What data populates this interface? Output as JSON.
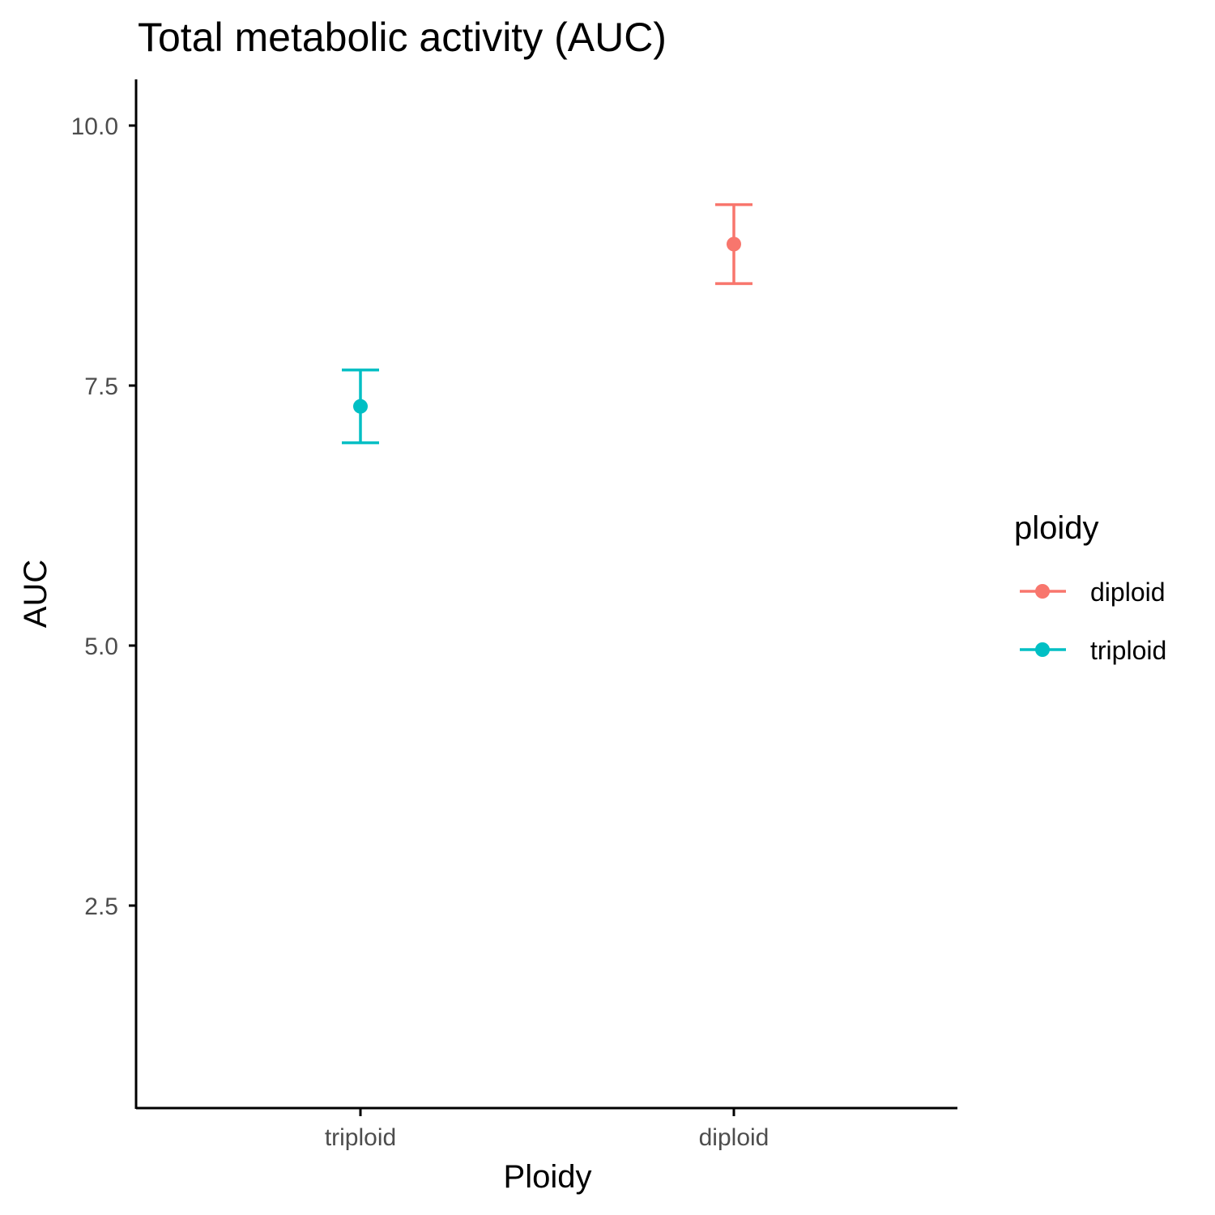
{
  "chart_data": {
    "type": "scatter",
    "title": "Total metabolic activity (AUC)",
    "xlabel": "Ploidy",
    "ylabel": "AUC",
    "categories": [
      "triploid",
      "diploid"
    ],
    "ylim": [
      0.8,
      10.45
    ],
    "yticks": [
      2.5,
      5.0,
      7.5,
      10.0
    ],
    "ytick_labels": [
      "2.5",
      "5.0",
      "7.5",
      "10.0"
    ],
    "grid": false,
    "legend": {
      "title": "ploidy",
      "placement": "right"
    },
    "series": [
      {
        "name": "diploid",
        "color": "#F8766D",
        "category": "diploid",
        "mean": 8.86,
        "lower": 8.48,
        "upper": 9.24
      },
      {
        "name": "triploid",
        "color": "#00BFC4",
        "category": "triploid",
        "mean": 7.3,
        "lower": 6.95,
        "upper": 7.65
      }
    ]
  }
}
